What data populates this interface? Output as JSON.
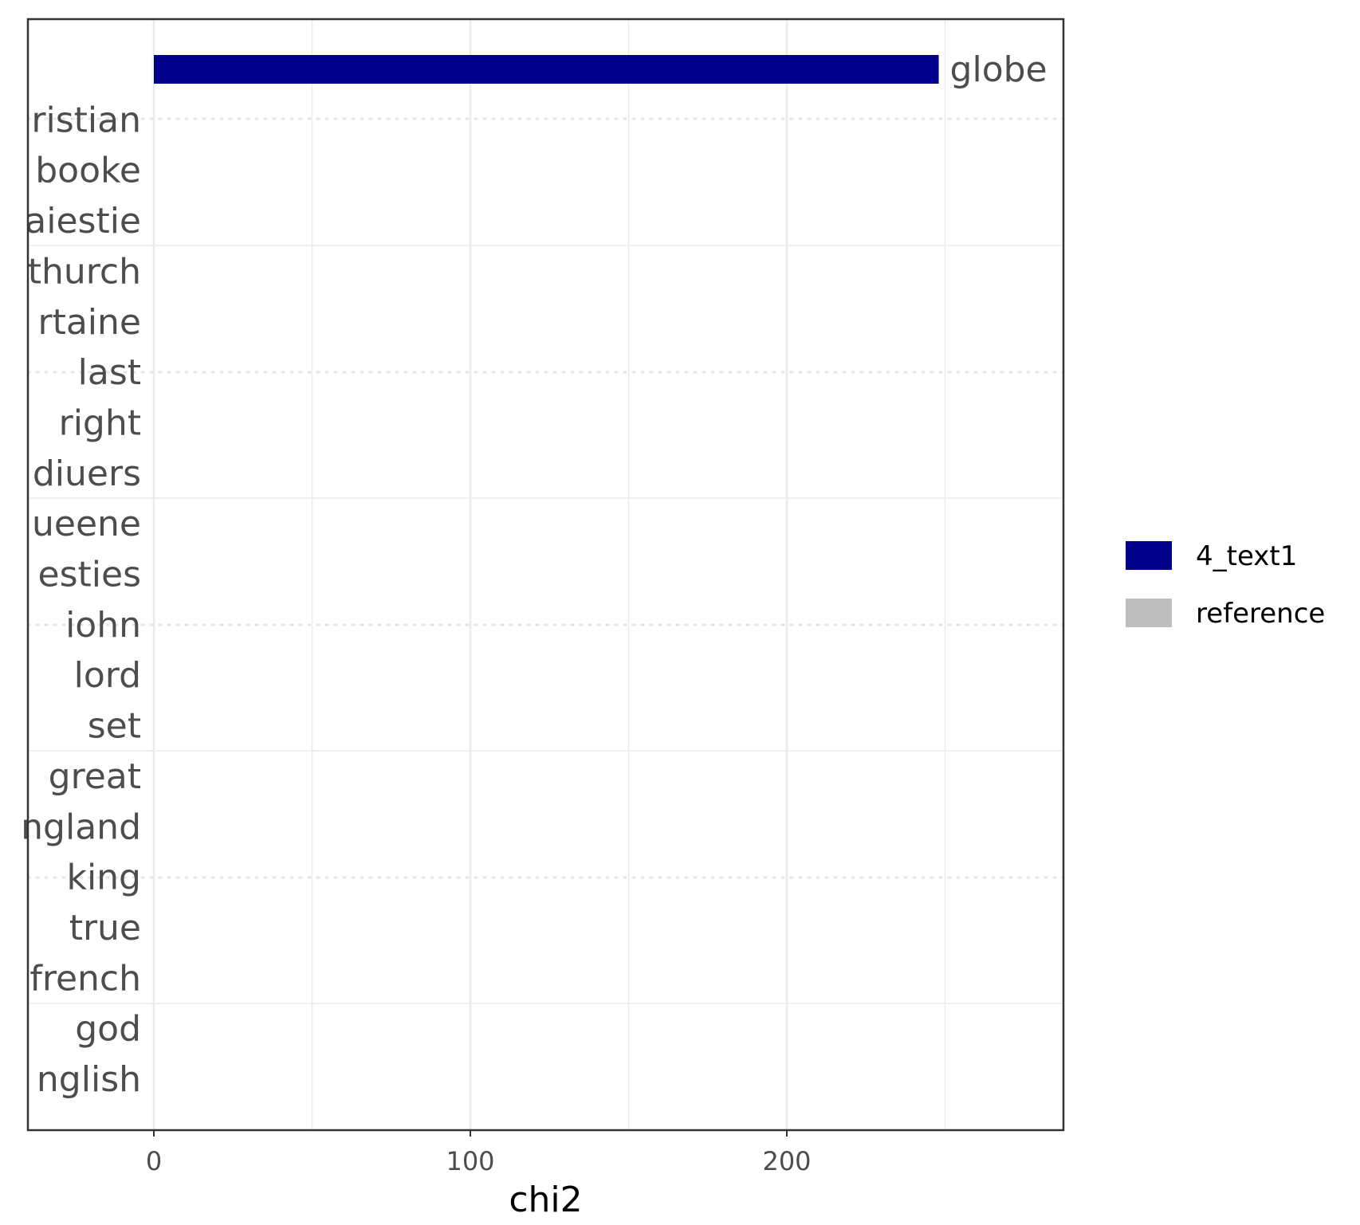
{
  "chart_data": {
    "type": "bar",
    "orientation": "horizontal",
    "xlabel": "chi2",
    "x_ticks": [
      0,
      100,
      200
    ],
    "xlim": [
      -40,
      285
    ],
    "categories": [
      "globe",
      "christian",
      "booke",
      "maiestie",
      "church",
      "certaine",
      "last",
      "right",
      "diuers",
      "queene",
      "maiesties",
      "iohn",
      "lord",
      "set",
      "great",
      "england",
      "king",
      "true",
      "french",
      "god",
      "english"
    ],
    "category_labels": [
      "",
      "ristian",
      "booke",
      "aiestie",
      "thurch",
      "rtaine",
      "last",
      "right",
      "diuers",
      "ueene",
      "esties",
      "iohn",
      "lord",
      "set",
      "great",
      "ngland",
      "king",
      "true",
      "french",
      "god",
      "nglish"
    ],
    "series": [
      {
        "name": "4_text1",
        "color": "#00008b",
        "values": [
          248,
          0,
          0,
          0,
          0,
          0,
          0,
          0,
          0,
          0,
          0,
          0,
          0,
          0,
          0,
          0,
          0,
          0,
          0,
          0,
          0
        ]
      },
      {
        "name": "reference",
        "color": "#bebebe",
        "values": [
          0,
          0,
          0,
          0,
          0,
          0,
          0,
          0,
          0,
          0,
          0,
          0,
          0,
          0,
          0,
          0,
          0,
          0,
          0,
          0,
          0
        ]
      }
    ],
    "bar_label": "globe",
    "legend": {
      "position": "right",
      "entries": [
        {
          "label": "4_text1",
          "color": "#00008b"
        },
        {
          "label": "reference",
          "color": "#bebebe"
        }
      ]
    },
    "grid": true
  }
}
